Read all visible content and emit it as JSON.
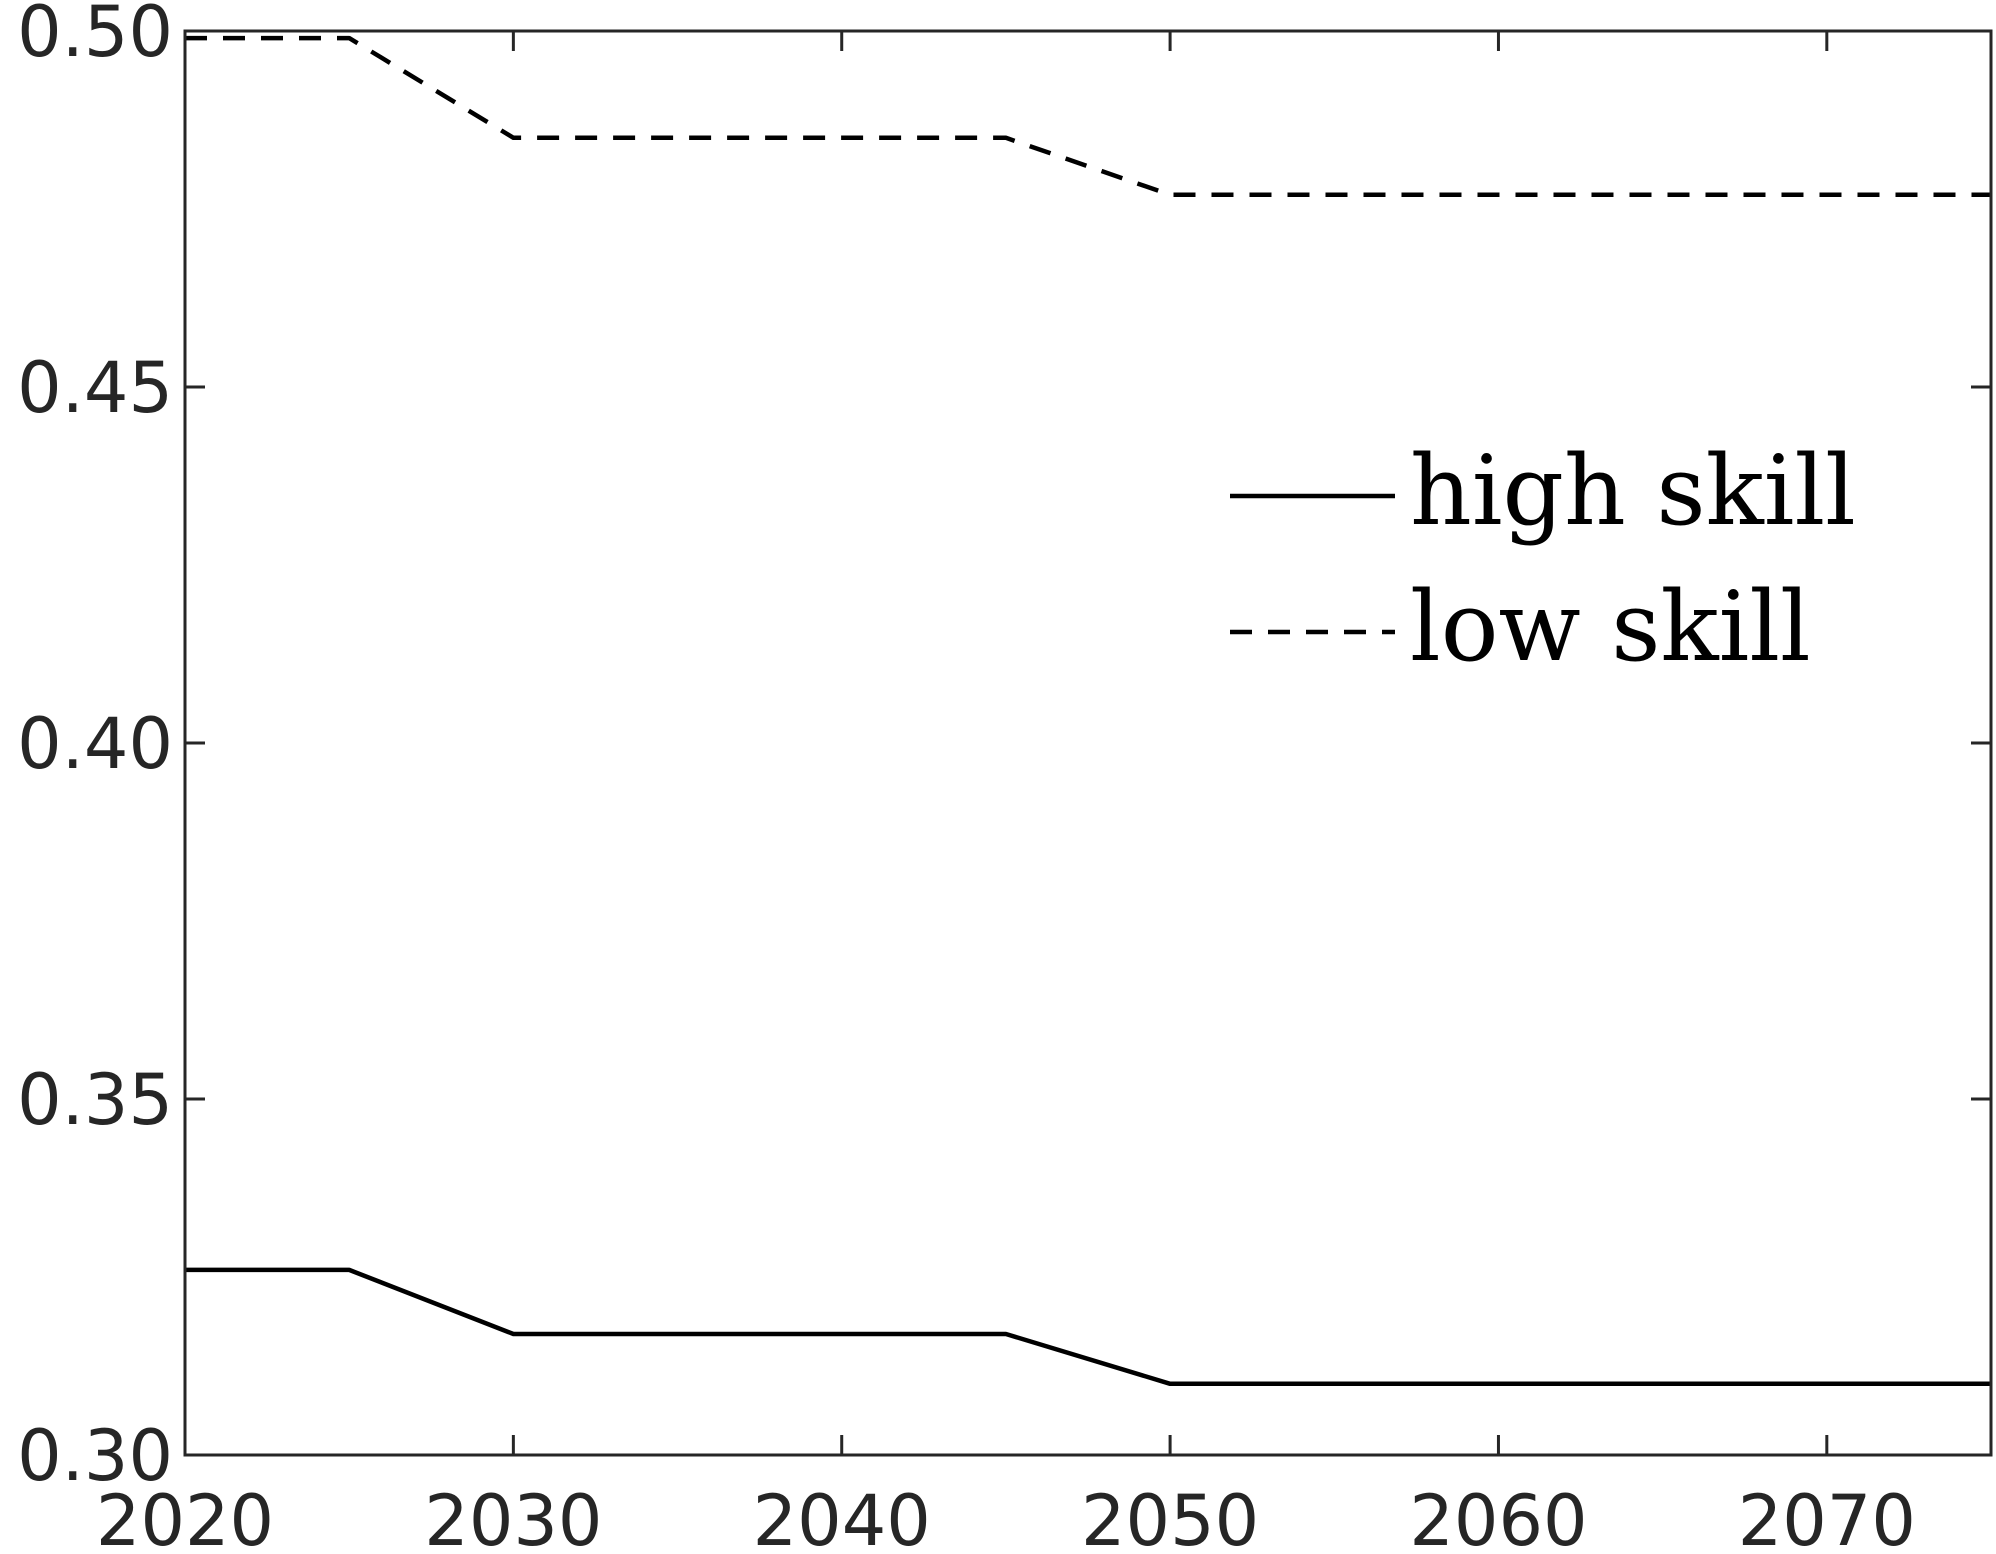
{
  "chart_data": {
    "type": "line",
    "title": "",
    "xlabel": "",
    "ylabel": "",
    "xlim": [
      2020,
      2075
    ],
    "ylim": [
      0.3,
      0.5
    ],
    "x_ticks": [
      2020,
      2030,
      2040,
      2050,
      2060,
      2070
    ],
    "y_ticks": [
      0.3,
      0.35,
      0.4,
      0.45,
      0.5
    ],
    "x_tick_labels": [
      "2020",
      "2030",
      "2040",
      "2050",
      "2060",
      "2070"
    ],
    "y_tick_labels": [
      "0.30",
      "0.35",
      "0.40",
      "0.45",
      "0.50"
    ],
    "grid": false,
    "legend_position": "right-upper-middle",
    "series": [
      {
        "name": "high skill",
        "style": "solid",
        "color": "#000000",
        "x": [
          2020,
          2025,
          2030,
          2035,
          2040,
          2045,
          2050,
          2055,
          2060,
          2065,
          2070,
          2075
        ],
        "y": [
          0.326,
          0.326,
          0.317,
          0.317,
          0.317,
          0.317,
          0.31,
          0.31,
          0.31,
          0.31,
          0.31,
          0.31
        ]
      },
      {
        "name": "low skill",
        "style": "dashed",
        "color": "#000000",
        "x": [
          2020,
          2025,
          2030,
          2035,
          2040,
          2045,
          2050,
          2055,
          2060,
          2065,
          2070,
          2075
        ],
        "y": [
          0.499,
          0.499,
          0.485,
          0.485,
          0.485,
          0.485,
          0.477,
          0.477,
          0.477,
          0.477,
          0.477,
          0.477
        ]
      }
    ]
  }
}
